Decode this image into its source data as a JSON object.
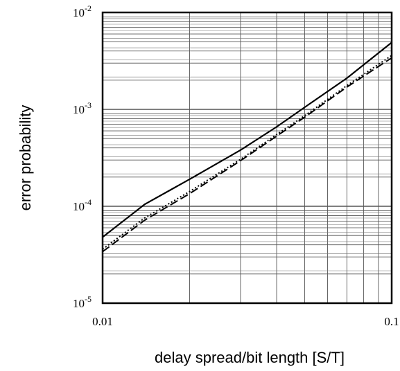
{
  "chart_data": {
    "type": "line",
    "title": "",
    "xlabel": "delay spread/bit length [S/T]",
    "ylabel": "error probability",
    "xscale": "log",
    "yscale": "log",
    "xlim": [
      0.01,
      0.1
    ],
    "ylim": [
      1e-05,
      0.01
    ],
    "grid": true,
    "legend": "none",
    "x_ticks": [
      {
        "value": 0.01,
        "label": "0.01"
      },
      {
        "value": 0.1,
        "label": "0.1"
      }
    ],
    "y_ticks": [
      {
        "value": 1e-05,
        "base": "10",
        "exp": "-5"
      },
      {
        "value": 0.0001,
        "base": "10",
        "exp": "-4"
      },
      {
        "value": 0.001,
        "base": "10",
        "exp": "-3"
      },
      {
        "value": 0.01,
        "base": "10",
        "exp": "-2"
      }
    ],
    "series": [
      {
        "style": "solid",
        "color": "#000000",
        "x": [
          0.01,
          0.014,
          0.02,
          0.03,
          0.04,
          0.05,
          0.07,
          0.1
        ],
        "y": [
          4.8e-05,
          0.000105,
          0.00019,
          0.00038,
          0.00066,
          0.00105,
          0.0021,
          0.0049
        ]
      },
      {
        "style": "dashed",
        "color": "#000000",
        "x": [
          0.01,
          0.014,
          0.02,
          0.03,
          0.04,
          0.05,
          0.07,
          0.1
        ],
        "y": [
          3.4e-05,
          7.2e-05,
          0.000135,
          0.000295,
          0.00053,
          0.00083,
          0.0017,
          0.0034
        ]
      },
      {
        "style": "dotted",
        "color": "#000000",
        "x": [
          0.01,
          0.014,
          0.02,
          0.03,
          0.04,
          0.05,
          0.07,
          0.1
        ],
        "y": [
          3.6e-05,
          7.6e-05,
          0.000142,
          0.000305,
          0.00055,
          0.00086,
          0.00176,
          0.0036
        ]
      }
    ]
  }
}
